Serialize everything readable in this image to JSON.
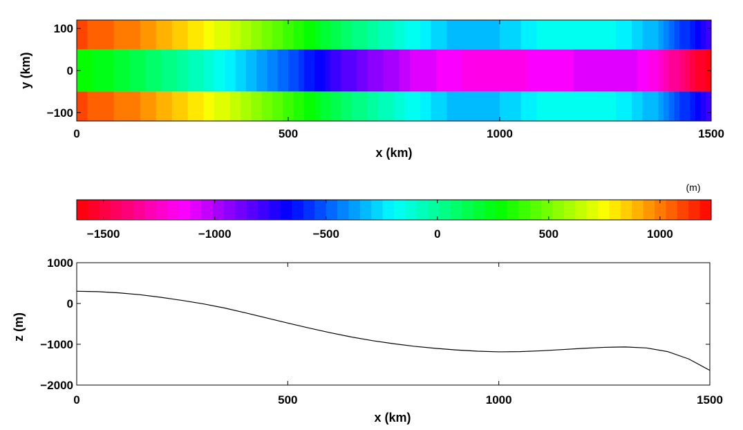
{
  "chart_data": [
    {
      "type": "heatmap",
      "title": "",
      "xlabel": "x (km)",
      "ylabel": "y (km)",
      "xlim": [
        0,
        1500
      ],
      "ylim": [
        -120,
        120
      ],
      "xticks": [
        "0",
        "500",
        "1000",
        "1500"
      ],
      "xtick_values": [
        0,
        500,
        1000,
        1500
      ],
      "yticks": [
        "100",
        "0",
        "−100"
      ],
      "ytick_values": [
        100,
        0,
        -100
      ],
      "shelf_edge_y": [
        -50,
        50
      ],
      "outside_channel_values_m": [
        [
          0,
          1100
        ],
        [
          125,
          1000
        ],
        [
          250,
          850
        ],
        [
          375,
          650
        ],
        [
          500,
          400
        ],
        [
          625,
          100
        ],
        [
          750,
          -100
        ],
        [
          875,
          -300
        ],
        [
          1000,
          -300
        ],
        [
          1125,
          -150
        ],
        [
          1250,
          -150
        ],
        [
          1375,
          -350
        ],
        [
          1500,
          -800
        ]
      ],
      "channel_values_m": [
        [
          0,
          300
        ],
        [
          100,
          200
        ],
        [
          200,
          60
        ],
        [
          300,
          -100
        ],
        [
          400,
          -300
        ],
        [
          500,
          -500
        ],
        [
          600,
          -750
        ],
        [
          700,
          -930
        ],
        [
          800,
          -1070
        ],
        [
          900,
          -1160
        ],
        [
          1000,
          -1180
        ],
        [
          1100,
          -1150
        ],
        [
          1200,
          -1100
        ],
        [
          1300,
          -1060
        ],
        [
          1350,
          -1150
        ],
        [
          1400,
          -1300
        ],
        [
          1450,
          -1450
        ],
        [
          1500,
          -1640
        ]
      ],
      "colormap": "hsv",
      "grid": false
    },
    {
      "type": "colorbar",
      "unit": "(m)",
      "range": [
        -1620,
        1230
      ],
      "ticks": [
        "−1500",
        "−1000",
        "−500",
        "0",
        "500",
        "1000"
      ],
      "tick_values": [
        -1500,
        -1000,
        -500,
        0,
        500,
        1000
      ],
      "colormap": "hsv"
    },
    {
      "type": "line",
      "title": "",
      "xlabel": "x (km)",
      "ylabel": "z (m)",
      "xlim": [
        0,
        1500
      ],
      "ylim": [
        -2000,
        1000
      ],
      "xticks": [
        "0",
        "500",
        "1000",
        "1500"
      ],
      "xtick_values": [
        0,
        500,
        1000,
        1500
      ],
      "yticks": [
        "1000",
        "0",
        "−1000",
        "−2000"
      ],
      "ytick_values": [
        1000,
        0,
        -1000,
        -2000
      ],
      "x": [
        0,
        50,
        100,
        150,
        200,
        250,
        300,
        350,
        400,
        450,
        500,
        550,
        600,
        650,
        700,
        750,
        800,
        850,
        900,
        950,
        1000,
        1050,
        1100,
        1150,
        1200,
        1250,
        1300,
        1350,
        1400,
        1450,
        1500
      ],
      "y": [
        300,
        290,
        260,
        215,
        150,
        75,
        -10,
        -110,
        -230,
        -355,
        -480,
        -600,
        -715,
        -820,
        -910,
        -985,
        -1050,
        -1100,
        -1140,
        -1170,
        -1185,
        -1180,
        -1160,
        -1130,
        -1100,
        -1075,
        -1065,
        -1090,
        -1180,
        -1360,
        -1640
      ],
      "color": "#000000",
      "grid": false
    }
  ]
}
